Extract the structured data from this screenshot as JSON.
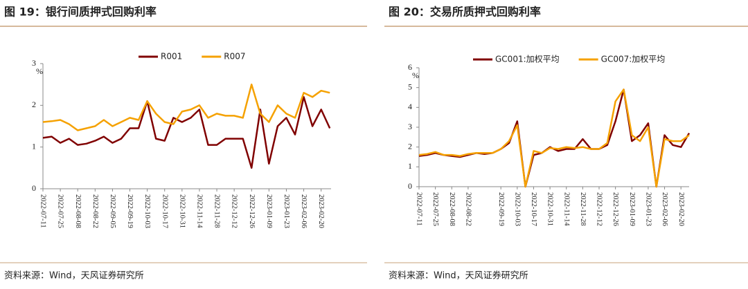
{
  "chart_data": [
    {
      "type": "line",
      "title": "图 19：银行间质押式回购利率",
      "source": "资料来源：Wind，天风证券研究所",
      "unit": "%",
      "x": [
        "2022-07-11",
        "2022-07-18",
        "2022-07-25",
        "2022-08-01",
        "2022-08-08",
        "2022-08-15",
        "2022-08-22",
        "2022-08-29",
        "2022-09-05",
        "2022-09-12",
        "2022-09-19",
        "2022-09-26",
        "2022-10-03",
        "2022-10-10",
        "2022-10-17",
        "2022-10-24",
        "2022-10-31",
        "2022-11-07",
        "2022-11-14",
        "2022-11-21",
        "2022-11-28",
        "2022-12-05",
        "2022-12-12",
        "2022-12-19",
        "2022-12-26",
        "2023-01-02",
        "2023-01-09",
        "2023-01-16",
        "2023-01-23",
        "2023-01-30",
        "2023-02-06",
        "2023-02-13",
        "2023-02-20",
        "2023-02-27"
      ],
      "series": [
        {
          "name": "R001",
          "color": "#800000",
          "values": [
            1.22,
            1.25,
            1.1,
            1.2,
            1.05,
            1.08,
            1.15,
            1.25,
            1.1,
            1.2,
            1.45,
            1.45,
            2.1,
            1.2,
            1.15,
            1.7,
            1.6,
            1.7,
            1.9,
            1.05,
            1.05,
            1.2,
            1.2,
            1.2,
            0.5,
            1.9,
            0.6,
            1.5,
            1.7,
            1.3,
            2.2,
            1.5,
            1.9,
            1.45
          ]
        },
        {
          "name": "R007",
          "color": "#f5a100",
          "values": [
            1.6,
            1.62,
            1.65,
            1.55,
            1.4,
            1.45,
            1.5,
            1.65,
            1.5,
            1.6,
            1.7,
            1.65,
            2.1,
            1.8,
            1.6,
            1.55,
            1.85,
            1.9,
            2.0,
            1.7,
            1.8,
            1.75,
            1.75,
            1.7,
            2.5,
            1.8,
            1.6,
            2.0,
            1.8,
            1.7,
            2.3,
            2.2,
            2.35,
            2.3
          ]
        }
      ],
      "xlim": [
        "2022-07-11",
        "2023-02-28"
      ],
      "xticks": [
        "2022-07-11",
        "2022-07-25",
        "2022-08-08",
        "2022-08-22",
        "2022-09-05",
        "2022-09-19",
        "2022-10-03",
        "2022-10-17",
        "2022-10-31",
        "2022-11-14",
        "2022-11-28",
        "2022-12-12",
        "2022-12-26",
        "2023-01-09",
        "2023-01-23",
        "2023-02-06",
        "2023-02-20"
      ],
      "ylim": [
        0,
        3
      ],
      "yticks": [
        0,
        1,
        2,
        3
      ],
      "legend": "top"
    },
    {
      "type": "line",
      "title": "图 20：交易所质押式回购利率",
      "source": "资料来源：Wind，天风证券研究所",
      "unit": "%",
      "x": [
        "2022-07-11",
        "2022-07-18",
        "2022-07-25",
        "2022-08-01",
        "2022-08-08",
        "2022-08-15",
        "2022-08-22",
        "2022-08-29",
        "2022-09-05",
        "2022-09-12",
        "2022-09-19",
        "2022-09-26",
        "2022-10-03",
        "2022-10-10",
        "2022-10-17",
        "2022-10-24",
        "2022-10-31",
        "2022-11-07",
        "2022-11-14",
        "2022-11-21",
        "2022-11-28",
        "2022-12-05",
        "2022-12-12",
        "2022-12-19",
        "2022-12-26",
        "2023-01-02",
        "2023-01-09",
        "2023-01-16",
        "2023-01-23",
        "2023-01-30",
        "2023-02-06",
        "2023-02-13",
        "2023-02-20",
        "2023-02-27"
      ],
      "series": [
        {
          "name": "GC001:加权平均",
          "color": "#800000",
          "values": [
            1.55,
            1.6,
            1.7,
            1.6,
            1.55,
            1.5,
            1.6,
            1.7,
            1.65,
            1.7,
            1.9,
            2.2,
            3.3,
            0,
            1.6,
            1.7,
            2.0,
            1.8,
            1.9,
            1.9,
            2.4,
            1.9,
            1.9,
            2.1,
            3.3,
            4.9,
            2.3,
            2.6,
            3.2,
            0,
            2.6,
            2.1,
            2.0,
            2.7
          ]
        },
        {
          "name": "GC007:加权平均",
          "color": "#f5a100",
          "values": [
            1.6,
            1.65,
            1.75,
            1.6,
            1.6,
            1.55,
            1.65,
            1.7,
            1.7,
            1.7,
            1.9,
            2.3,
            3.1,
            0,
            1.8,
            1.7,
            1.95,
            1.9,
            2.0,
            1.95,
            2.0,
            1.9,
            1.9,
            2.2,
            4.3,
            4.9,
            2.6,
            2.3,
            3.0,
            0,
            2.4,
            2.3,
            2.3,
            2.6
          ]
        }
      ],
      "xlim": [
        "2022-07-11",
        "2023-02-27"
      ],
      "xticks": [
        "2022-07-11",
        "2022-07-25",
        "2022-08-08",
        "2022-08-22",
        "2022-09-19",
        "2022-10-03",
        "2022-10-17",
        "2022-10-31",
        "2022-11-14",
        "2022-11-28",
        "2022-12-12",
        "2022-12-26",
        "2023-01-09",
        "2023-01-23",
        "2023-02-06",
        "2023-02-20"
      ],
      "ylim": [
        0,
        6
      ],
      "yticks": [
        0,
        1,
        2,
        3,
        4,
        5,
        6
      ],
      "legend": "top"
    }
  ]
}
